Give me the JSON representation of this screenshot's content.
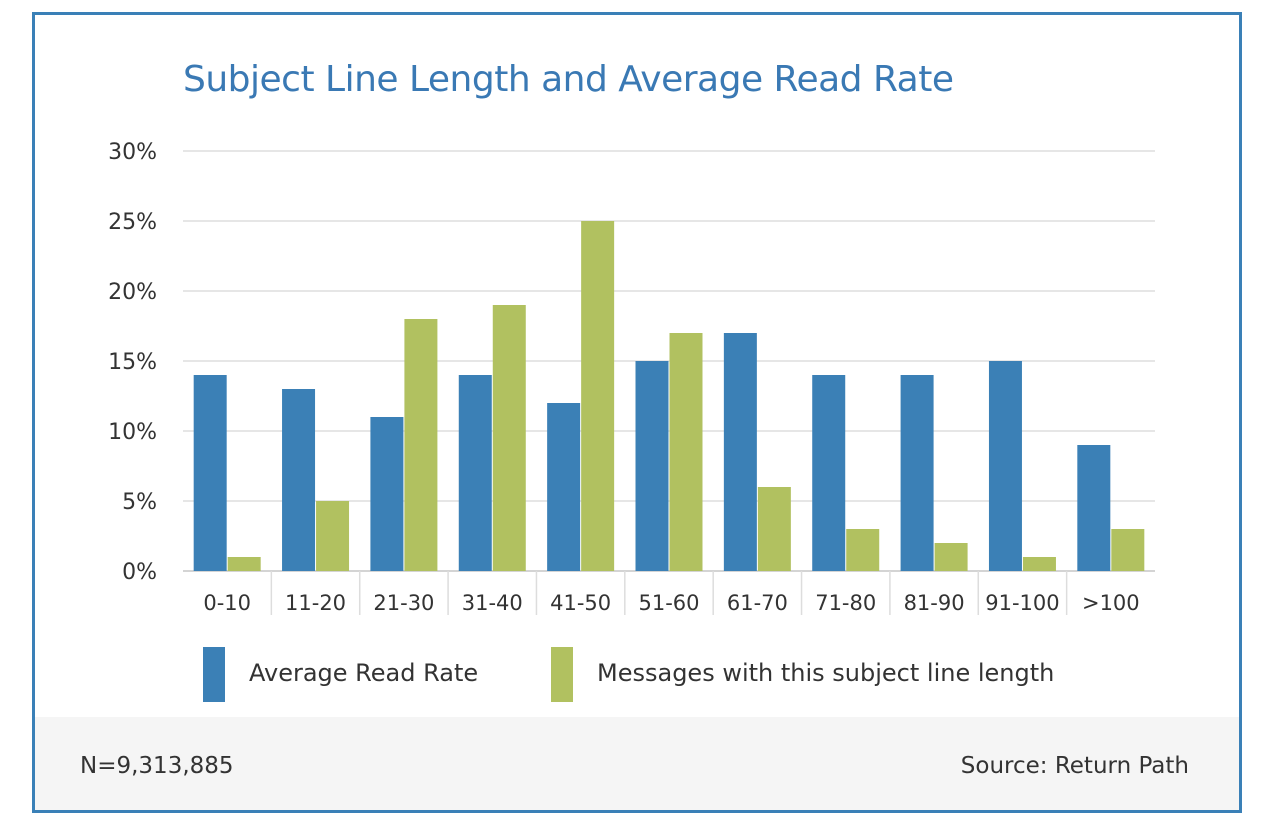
{
  "chart_data": {
    "type": "bar",
    "title": "Subject Line Length and Average Read Rate",
    "categories": [
      "0-10",
      "11-20",
      "21-30",
      "31-40",
      "41-50",
      "51-60",
      "61-70",
      "71-80",
      "81-90",
      "91-100",
      ">100"
    ],
    "series": [
      {
        "name": "Average Read Rate",
        "color": "#3b80b6",
        "values": [
          14,
          13,
          11,
          14,
          12,
          15,
          17,
          14,
          14,
          15,
          9
        ]
      },
      {
        "name": "Messages with this subject line length",
        "color": "#b1c160",
        "values": [
          1,
          5,
          18,
          19,
          25,
          17,
          6,
          3,
          2,
          1,
          3
        ]
      }
    ],
    "ylim": [
      0,
      30
    ],
    "yticks": [
      "0%",
      "5%",
      "10%",
      "15%",
      "20%",
      "25%",
      "30%"
    ],
    "grid": true,
    "legend_position": "bottom"
  },
  "footer": {
    "n_label": "N=9,313,885",
    "source": "Source: Return Path"
  },
  "colors": {
    "border": "#3a80b7",
    "title": "#3a79b4",
    "grid": "#e6e6e6",
    "footer_bg": "#f5f5f5"
  }
}
